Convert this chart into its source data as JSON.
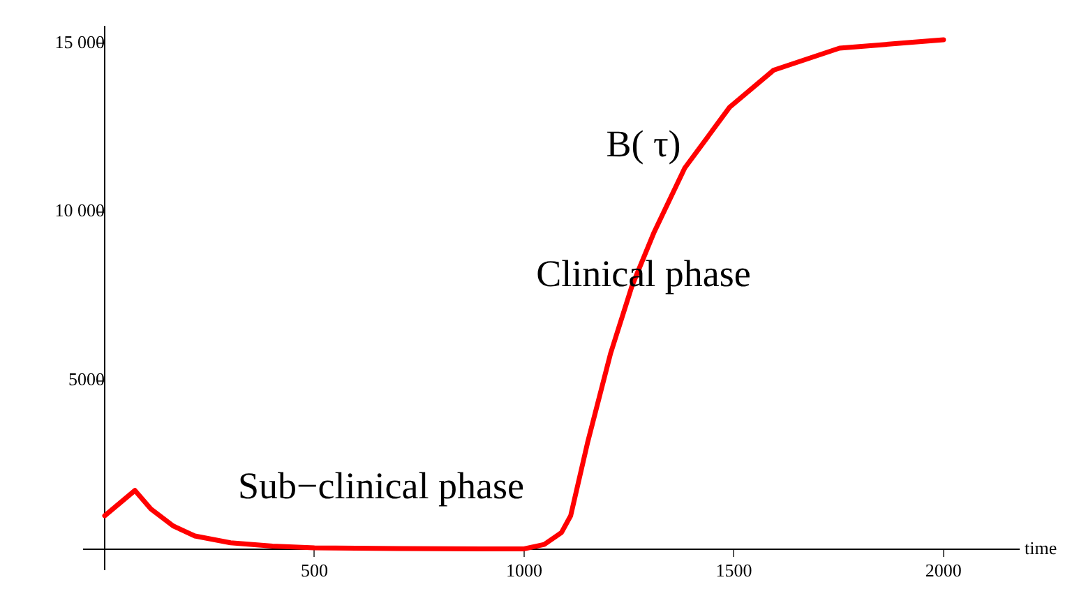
{
  "chart_data": {
    "type": "line",
    "xlabel": "time",
    "annotations": [
      "B( τ)",
      "Clinical phase",
      "Sub−clinical phase"
    ],
    "series": [
      {
        "color": "#ff0000",
        "x": [
          0,
          72,
          110,
          163,
          215,
          300,
          400,
          500,
          700,
          900,
          1000,
          1048,
          1089,
          1111,
          1152,
          1206,
          1257,
          1310,
          1383,
          1490,
          1595,
          1752,
          1900,
          2000
        ],
        "values": [
          1000,
          1750,
          1200,
          700,
          400,
          200,
          100,
          50,
          30,
          20,
          20,
          150,
          500,
          1000,
          3200,
          5800,
          7800,
          9400,
          11300,
          13100,
          14200,
          14850,
          15000,
          15100
        ]
      }
    ],
    "xlim": [
      -50,
      2180
    ],
    "ylim": [
      -600,
      15500
    ],
    "xticks": [
      500,
      1000,
      1500,
      2000
    ],
    "yticks": [
      5000,
      {
        "value": 10000,
        "label": "10 000"
      },
      {
        "value": 15000,
        "label": "15 000"
      }
    ],
    "marker": "none",
    "line_style": "solid",
    "grid": false,
    "legend": false
  }
}
